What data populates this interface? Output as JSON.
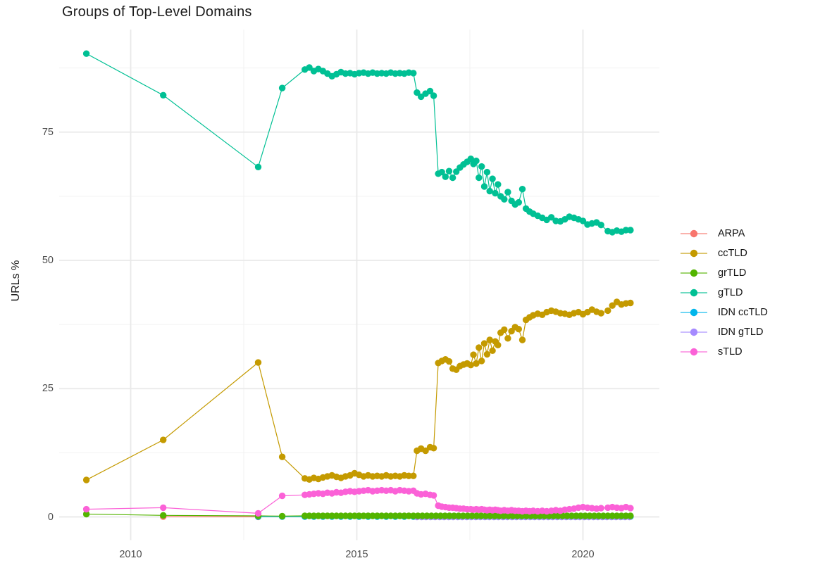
{
  "chart_data": {
    "type": "line",
    "title": "Groups of Top-Level Domains",
    "xlabel": "",
    "ylabel": "URLs %",
    "legend_position": "right",
    "grid": "on",
    "axes": {
      "x_ticks": [
        {
          "value": 2010,
          "label": "2010"
        },
        {
          "value": 2015,
          "label": "2015"
        },
        {
          "value": 2020,
          "label": "2020"
        }
      ],
      "x_minor": [
        2012.5,
        2017.5
      ],
      "y_ticks": [
        {
          "value": 0,
          "label": "0"
        },
        {
          "value": 25,
          "label": "25"
        },
        {
          "value": 50,
          "label": "50"
        },
        {
          "value": 75,
          "label": "75"
        }
      ],
      "y_minor": [
        12.5,
        37.5,
        62.5,
        87.5
      ],
      "xlim": [
        2008.4,
        2021.7
      ],
      "ylim": [
        -4.6,
        95.0
      ]
    },
    "series": [
      {
        "name": "ARPA",
        "color": "#F8766D",
        "points": [
          [
            2010.72,
            0.05
          ],
          [
            2012.82,
            0.02
          ]
        ]
      },
      {
        "name": "ccTLD",
        "color": "#C49A00",
        "points": [
          [
            2009.02,
            7.2
          ],
          [
            2010.72,
            15.0
          ],
          [
            2012.82,
            30.1
          ],
          [
            2013.35,
            11.7
          ],
          [
            2013.85,
            7.5
          ],
          [
            2013.95,
            7.3
          ],
          [
            2014.05,
            7.6
          ],
          [
            2014.15,
            7.4
          ],
          [
            2014.25,
            7.7
          ],
          [
            2014.35,
            7.9
          ],
          [
            2014.45,
            8.1
          ],
          [
            2014.55,
            7.8
          ],
          [
            2014.65,
            7.6
          ],
          [
            2014.75,
            7.9
          ],
          [
            2014.85,
            8.1
          ],
          [
            2014.95,
            8.5
          ],
          [
            2015.05,
            8.2
          ],
          [
            2015.15,
            7.9
          ],
          [
            2015.25,
            8.1
          ],
          [
            2015.35,
            7.9
          ],
          [
            2015.45,
            8.0
          ],
          [
            2015.55,
            7.9
          ],
          [
            2015.65,
            8.1
          ],
          [
            2015.75,
            7.9
          ],
          [
            2015.85,
            8.0
          ],
          [
            2015.95,
            7.9
          ],
          [
            2016.05,
            8.1
          ],
          [
            2016.15,
            8.0
          ],
          [
            2016.25,
            8.0
          ],
          [
            2016.33,
            12.9
          ],
          [
            2016.42,
            13.3
          ],
          [
            2016.52,
            12.9
          ],
          [
            2016.62,
            13.6
          ],
          [
            2016.7,
            13.4
          ],
          [
            2016.8,
            30.0
          ],
          [
            2016.88,
            30.4
          ],
          [
            2016.96,
            30.7
          ],
          [
            2017.04,
            30.3
          ],
          [
            2017.12,
            28.9
          ],
          [
            2017.2,
            28.7
          ],
          [
            2017.28,
            29.4
          ],
          [
            2017.36,
            29.7
          ],
          [
            2017.44,
            29.9
          ],
          [
            2017.52,
            29.6
          ],
          [
            2017.58,
            31.6
          ],
          [
            2017.64,
            29.9
          ],
          [
            2017.7,
            33.0
          ],
          [
            2017.76,
            30.4
          ],
          [
            2017.82,
            33.8
          ],
          [
            2017.88,
            31.7
          ],
          [
            2017.94,
            34.5
          ],
          [
            2018.0,
            32.4
          ],
          [
            2018.06,
            34.2
          ],
          [
            2018.12,
            33.5
          ],
          [
            2018.18,
            35.9
          ],
          [
            2018.26,
            36.5
          ],
          [
            2018.34,
            34.8
          ],
          [
            2018.42,
            36.2
          ],
          [
            2018.5,
            37.0
          ],
          [
            2018.58,
            36.6
          ],
          [
            2018.66,
            34.5
          ],
          [
            2018.74,
            38.4
          ],
          [
            2018.82,
            38.9
          ],
          [
            2018.9,
            39.3
          ],
          [
            2019.0,
            39.6
          ],
          [
            2019.1,
            39.4
          ],
          [
            2019.2,
            39.9
          ],
          [
            2019.3,
            40.2
          ],
          [
            2019.4,
            40.0
          ],
          [
            2019.5,
            39.7
          ],
          [
            2019.6,
            39.6
          ],
          [
            2019.7,
            39.4
          ],
          [
            2019.8,
            39.7
          ],
          [
            2019.9,
            39.9
          ],
          [
            2020.0,
            39.5
          ],
          [
            2020.1,
            39.9
          ],
          [
            2020.2,
            40.4
          ],
          [
            2020.3,
            40.0
          ],
          [
            2020.4,
            39.7
          ],
          [
            2020.55,
            40.2
          ],
          [
            2020.65,
            41.2
          ],
          [
            2020.75,
            41.9
          ],
          [
            2020.85,
            41.4
          ],
          [
            2020.95,
            41.6
          ],
          [
            2021.05,
            41.7
          ]
        ]
      },
      {
        "name": "grTLD",
        "color": "#53B400",
        "points": [
          [
            2009.02,
            0.55
          ],
          [
            2010.72,
            0.3
          ],
          [
            2012.82,
            0.2
          ],
          [
            2013.35,
            0.15
          ]
        ],
        "flat": {
          "from": 2013.85,
          "to": 2021.05,
          "step": 0.1,
          "value": 0.2
        }
      },
      {
        "name": "gTLD",
        "color": "#00C094",
        "points": [
          [
            2009.02,
            90.3
          ],
          [
            2010.72,
            82.2
          ],
          [
            2012.82,
            68.2
          ],
          [
            2013.35,
            83.6
          ],
          [
            2013.85,
            87.2
          ],
          [
            2013.95,
            87.6
          ],
          [
            2014.05,
            86.9
          ],
          [
            2014.15,
            87.3
          ],
          [
            2014.25,
            86.9
          ],
          [
            2014.35,
            86.4
          ],
          [
            2014.45,
            85.9
          ],
          [
            2014.55,
            86.3
          ],
          [
            2014.65,
            86.7
          ],
          [
            2014.75,
            86.4
          ],
          [
            2014.85,
            86.5
          ],
          [
            2014.95,
            86.3
          ],
          [
            2015.05,
            86.5
          ],
          [
            2015.15,
            86.6
          ],
          [
            2015.25,
            86.4
          ],
          [
            2015.35,
            86.6
          ],
          [
            2015.45,
            86.4
          ],
          [
            2015.55,
            86.5
          ],
          [
            2015.65,
            86.4
          ],
          [
            2015.75,
            86.6
          ],
          [
            2015.85,
            86.4
          ],
          [
            2015.95,
            86.5
          ],
          [
            2016.05,
            86.4
          ],
          [
            2016.15,
            86.6
          ],
          [
            2016.25,
            86.5
          ],
          [
            2016.33,
            82.7
          ],
          [
            2016.42,
            81.9
          ],
          [
            2016.52,
            82.5
          ],
          [
            2016.62,
            83.0
          ],
          [
            2016.7,
            82.1
          ],
          [
            2016.8,
            66.9
          ],
          [
            2016.88,
            67.2
          ],
          [
            2016.96,
            66.3
          ],
          [
            2017.04,
            67.4
          ],
          [
            2017.12,
            66.1
          ],
          [
            2017.2,
            67.3
          ],
          [
            2017.28,
            68.1
          ],
          [
            2017.36,
            68.7
          ],
          [
            2017.44,
            69.2
          ],
          [
            2017.52,
            69.8
          ],
          [
            2017.58,
            68.8
          ],
          [
            2017.64,
            69.4
          ],
          [
            2017.7,
            66.1
          ],
          [
            2017.76,
            68.3
          ],
          [
            2017.82,
            64.4
          ],
          [
            2017.88,
            67.2
          ],
          [
            2017.94,
            63.5
          ],
          [
            2018.0,
            65.9
          ],
          [
            2018.06,
            63.1
          ],
          [
            2018.12,
            64.8
          ],
          [
            2018.18,
            62.5
          ],
          [
            2018.26,
            61.9
          ],
          [
            2018.34,
            63.3
          ],
          [
            2018.42,
            61.6
          ],
          [
            2018.5,
            60.9
          ],
          [
            2018.58,
            61.3
          ],
          [
            2018.66,
            63.9
          ],
          [
            2018.74,
            60.1
          ],
          [
            2018.82,
            59.5
          ],
          [
            2018.9,
            59.1
          ],
          [
            2019.0,
            58.7
          ],
          [
            2019.1,
            58.3
          ],
          [
            2019.2,
            57.9
          ],
          [
            2019.3,
            58.4
          ],
          [
            2019.4,
            57.7
          ],
          [
            2019.5,
            57.6
          ],
          [
            2019.6,
            58.0
          ],
          [
            2019.7,
            58.5
          ],
          [
            2019.8,
            58.3
          ],
          [
            2019.9,
            58.0
          ],
          [
            2020.0,
            57.7
          ],
          [
            2020.1,
            57.0
          ],
          [
            2020.2,
            57.2
          ],
          [
            2020.3,
            57.4
          ],
          [
            2020.4,
            56.9
          ],
          [
            2020.55,
            55.7
          ],
          [
            2020.65,
            55.5
          ],
          [
            2020.75,
            55.8
          ],
          [
            2020.85,
            55.6
          ],
          [
            2020.95,
            55.9
          ],
          [
            2021.05,
            55.9
          ]
        ]
      },
      {
        "name": "IDN ccTLD",
        "color": "#00B6EB",
        "points": [
          [
            2012.82,
            0.05
          ],
          [
            2013.35,
            0.05
          ]
        ],
        "flat": {
          "from": 2013.85,
          "to": 2021.05,
          "step": 0.2,
          "value": 0.05
        }
      },
      {
        "name": "IDN gTLD",
        "color": "#A58AFF",
        "points": [],
        "flat": {
          "from": 2016.33,
          "to": 2021.05,
          "step": 0.1,
          "value": 0.0
        }
      },
      {
        "name": "sTLD",
        "color": "#FB61D7",
        "points": [
          [
            2009.02,
            1.5
          ],
          [
            2010.72,
            1.8
          ],
          [
            2012.82,
            0.7
          ],
          [
            2013.35,
            4.1
          ],
          [
            2013.85,
            4.3
          ],
          [
            2013.95,
            4.4
          ],
          [
            2014.05,
            4.5
          ],
          [
            2014.15,
            4.6
          ],
          [
            2014.25,
            4.5
          ],
          [
            2014.35,
            4.7
          ],
          [
            2014.45,
            4.6
          ],
          [
            2014.55,
            4.8
          ],
          [
            2014.65,
            4.7
          ],
          [
            2014.75,
            4.9
          ],
          [
            2014.85,
            5.0
          ],
          [
            2014.95,
            4.9
          ],
          [
            2015.05,
            5.0
          ],
          [
            2015.15,
            5.1
          ],
          [
            2015.25,
            5.2
          ],
          [
            2015.35,
            5.0
          ],
          [
            2015.45,
            5.1
          ],
          [
            2015.55,
            5.2
          ],
          [
            2015.65,
            5.1
          ],
          [
            2015.75,
            5.2
          ],
          [
            2015.85,
            5.0
          ],
          [
            2015.95,
            5.2
          ],
          [
            2016.05,
            5.1
          ],
          [
            2016.15,
            5.0
          ],
          [
            2016.25,
            5.1
          ],
          [
            2016.33,
            4.6
          ],
          [
            2016.42,
            4.4
          ],
          [
            2016.52,
            4.5
          ],
          [
            2016.62,
            4.3
          ],
          [
            2016.7,
            4.2
          ],
          [
            2016.8,
            2.2
          ],
          [
            2016.88,
            2.0
          ],
          [
            2016.96,
            1.9
          ],
          [
            2017.04,
            1.8
          ],
          [
            2017.12,
            1.8
          ],
          [
            2017.2,
            1.7
          ],
          [
            2017.28,
            1.6
          ],
          [
            2017.36,
            1.6
          ],
          [
            2017.44,
            1.5
          ],
          [
            2017.52,
            1.5
          ],
          [
            2017.58,
            1.4
          ],
          [
            2017.64,
            1.5
          ],
          [
            2017.7,
            1.4
          ],
          [
            2017.76,
            1.5
          ],
          [
            2017.82,
            1.4
          ],
          [
            2017.88,
            1.3
          ],
          [
            2017.94,
            1.4
          ],
          [
            2018.0,
            1.3
          ],
          [
            2018.06,
            1.4
          ],
          [
            2018.12,
            1.3
          ],
          [
            2018.18,
            1.2
          ],
          [
            2018.26,
            1.3
          ],
          [
            2018.34,
            1.2
          ],
          [
            2018.42,
            1.3
          ],
          [
            2018.5,
            1.2
          ],
          [
            2018.58,
            1.2
          ],
          [
            2018.66,
            1.1
          ],
          [
            2018.74,
            1.2
          ],
          [
            2018.82,
            1.1
          ],
          [
            2018.9,
            1.2
          ],
          [
            2019.0,
            1.1
          ],
          [
            2019.1,
            1.2
          ],
          [
            2019.2,
            1.1
          ],
          [
            2019.3,
            1.2
          ],
          [
            2019.4,
            1.3
          ],
          [
            2019.5,
            1.2
          ],
          [
            2019.6,
            1.4
          ],
          [
            2019.7,
            1.5
          ],
          [
            2019.8,
            1.6
          ],
          [
            2019.9,
            1.8
          ],
          [
            2020.0,
            1.9
          ],
          [
            2020.1,
            1.8
          ],
          [
            2020.2,
            1.7
          ],
          [
            2020.3,
            1.6
          ],
          [
            2020.4,
            1.7
          ],
          [
            2020.55,
            1.8
          ],
          [
            2020.65,
            1.9
          ],
          [
            2020.75,
            1.8
          ],
          [
            2020.85,
            1.7
          ],
          [
            2020.95,
            1.9
          ],
          [
            2021.05,
            1.7
          ]
        ]
      }
    ],
    "colors": {
      "grid_major": "#E9E9E9",
      "grid_minor": "#F2F2F2",
      "tick_text": "#4d4d4d",
      "title_text": "#1c1c1c"
    }
  }
}
